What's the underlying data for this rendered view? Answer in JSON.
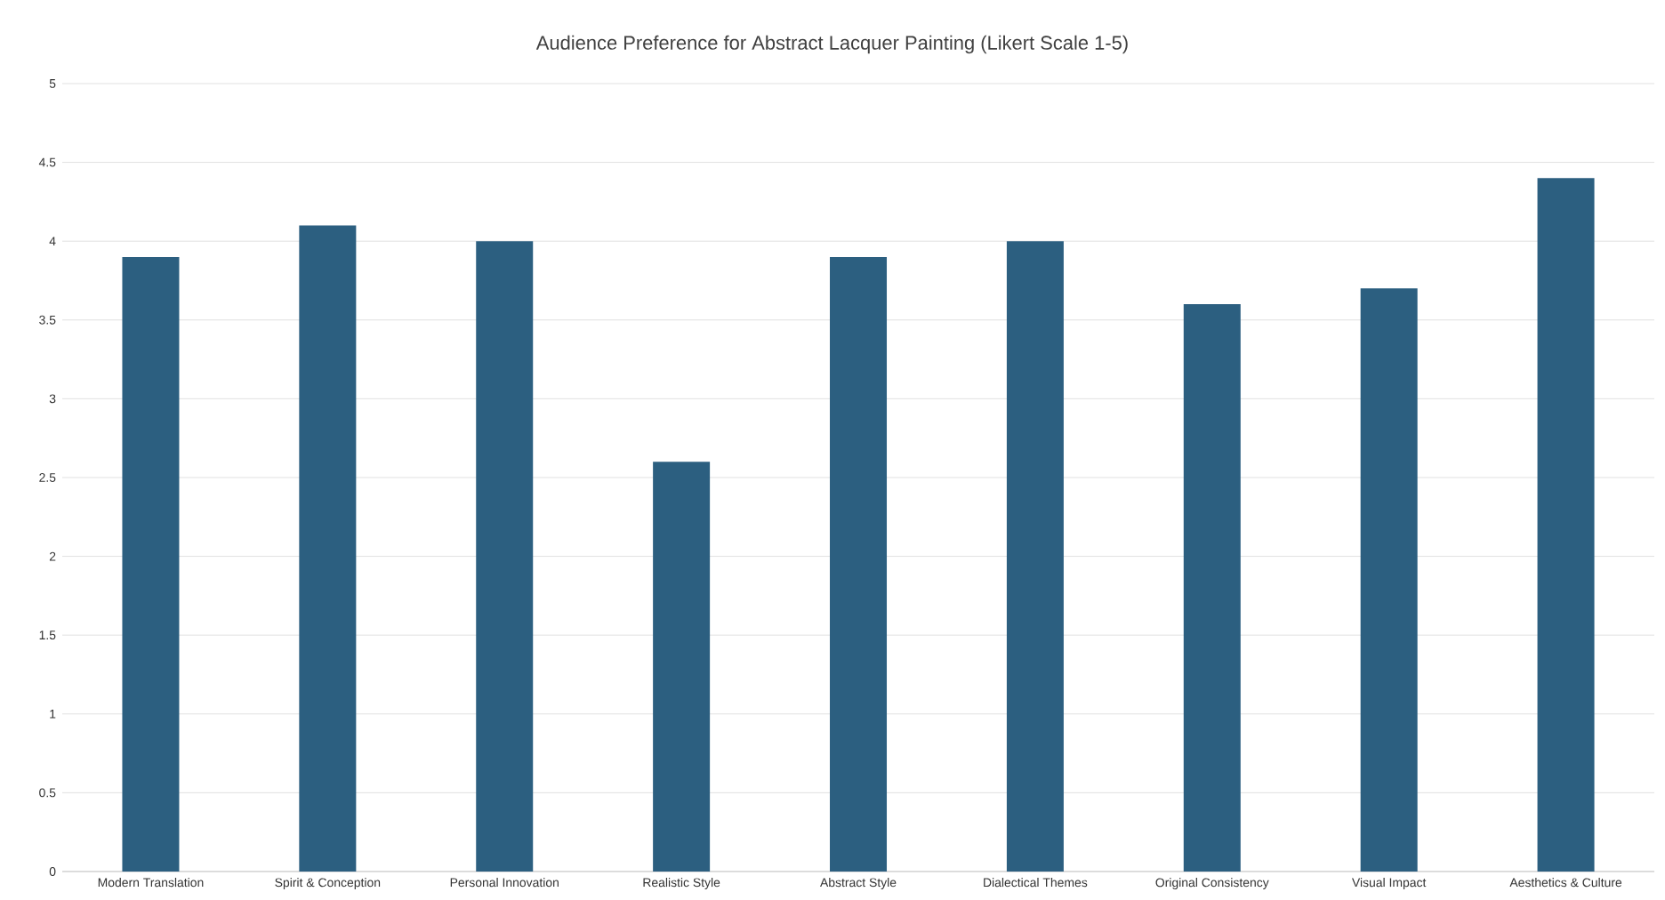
{
  "chart_data": {
    "type": "bar",
    "title": "Audience Preference for Abstract Lacquer Painting (Likert Scale 1-5)",
    "categories": [
      "Modern Translation",
      "Spirit & Conception",
      "Personal Innovation",
      "Realistic Style",
      "Abstract Style",
      "Dialectical Themes",
      "Original Consistency",
      "Visual Impact",
      "Aesthetics & Culture"
    ],
    "values": [
      3.9,
      4.1,
      4.0,
      2.6,
      3.9,
      4.0,
      3.6,
      3.7,
      4.4
    ],
    "color": "#2c5f80",
    "ylim": [
      0,
      5
    ],
    "yticks": [
      0,
      0.5,
      1,
      1.5,
      2,
      2.5,
      3,
      3.5,
      4,
      4.5,
      5
    ],
    "grid": true
  }
}
